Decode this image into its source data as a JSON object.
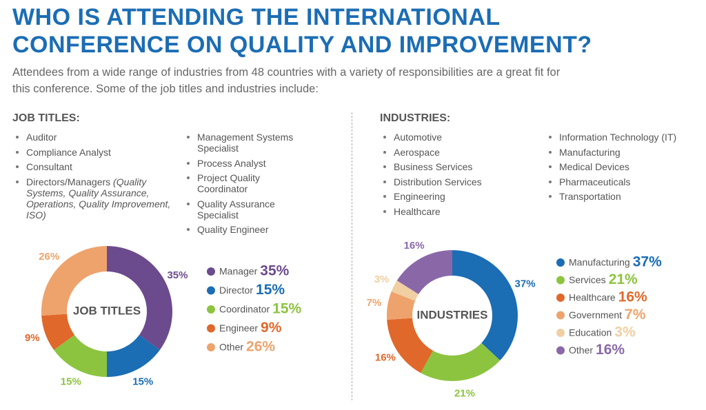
{
  "header": {
    "title_lines": [
      "WHO IS ATTENDING THE INTERNATIONAL",
      "CONFERENCE ON QUALITY AND IMPROVEMENT?"
    ],
    "intro_lines": [
      "Attendees from a wide range of industries from 48 countries with a variety of responsibilities are a great fit for",
      "this conference. Some of the job titles and industries include:"
    ]
  },
  "job_titles": {
    "heading": "JOB TITLES:",
    "column1": [
      {
        "text": "Auditor"
      },
      {
        "text": "Compliance Analyst"
      },
      {
        "text": "Consultant"
      },
      {
        "text": "Directors/Managers",
        "note": "(Quality Systems, Quality Assurance, Operations, Quality Improvement, ISO)"
      }
    ],
    "column2": [
      {
        "text": "Management Systems Specialist"
      },
      {
        "text": "Process Analyst"
      },
      {
        "text": "Project Quality Coordinator"
      },
      {
        "text": "Quality Assurance Specialist"
      },
      {
        "text": "Quality Engineer"
      }
    ]
  },
  "industries": {
    "heading": "INDUSTRIES:",
    "column1": [
      {
        "text": "Automotive"
      },
      {
        "text": "Aerospace"
      },
      {
        "text": "Business Services"
      },
      {
        "text": "Distribution Services"
      },
      {
        "text": "Engineering"
      },
      {
        "text": "Healthcare"
      }
    ],
    "column2": [
      {
        "text": "Information Technology (IT)"
      },
      {
        "text": "Manufacturing"
      },
      {
        "text": "Medical Devices"
      },
      {
        "text": "Pharmaceuticals"
      },
      {
        "text": "Transportation"
      }
    ]
  },
  "chart_data": [
    {
      "type": "donut",
      "center_label": "JOB TITLES",
      "categories": [
        "Manager",
        "Director",
        "Coordinator",
        "Engineer",
        "Other"
      ],
      "values": [
        35,
        15,
        15,
        9,
        26
      ],
      "value_labels": [
        "35%",
        "15%",
        "15%",
        "9%",
        "26%"
      ],
      "colors": [
        "#6c4a8e",
        "#1b6db4",
        "#8cc43f",
        "#e0682b",
        "#eea36c"
      ]
    },
    {
      "type": "donut",
      "center_label": "INDUSTRIES",
      "categories": [
        "Manufacturing",
        "Services",
        "Healthcare",
        "Government",
        "Education",
        "Other"
      ],
      "values": [
        37,
        21,
        16,
        7,
        3,
        16
      ],
      "value_labels": [
        "37%",
        "21%",
        "16%",
        "7%",
        "3%",
        "16%"
      ],
      "colors": [
        "#1b6db4",
        "#8cc43f",
        "#e0682b",
        "#eea36c",
        "#f0cfa2",
        "#8a68a8"
      ]
    }
  ]
}
